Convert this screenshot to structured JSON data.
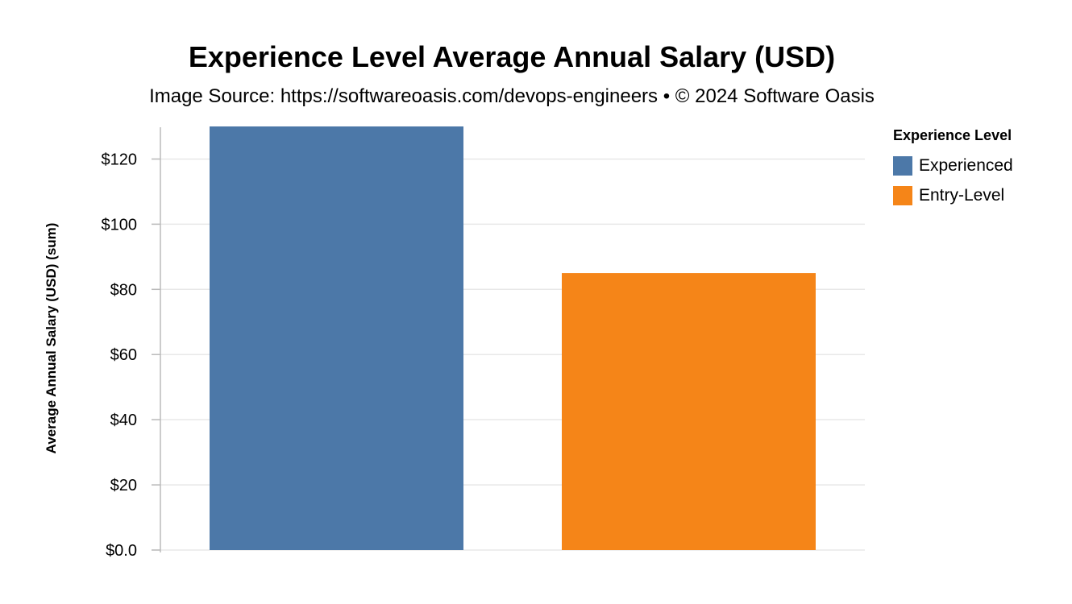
{
  "chart_data": {
    "type": "bar",
    "title": "Experience Level Average Annual Salary (USD)",
    "subtitle": "Image Source: https://softwareoasis.com/devops-engineers • © 2024 Software Oasis",
    "xlabel": "",
    "ylabel": "Average Annual Salary (USD) (sum)",
    "ylim": [
      0,
      130
    ],
    "yticks": [
      0,
      20,
      40,
      60,
      80,
      100,
      120
    ],
    "ytick_labels": [
      "$0.0",
      "$20",
      "$40",
      "$60",
      "$80",
      "$100",
      "$120"
    ],
    "grid": true,
    "legend_position": "right",
    "legend_title": "Experience Level",
    "categories": [
      "Experienced",
      "Entry-Level"
    ],
    "values": [
      130,
      85
    ],
    "colors": [
      "#4c78a8",
      "#f58518"
    ]
  }
}
